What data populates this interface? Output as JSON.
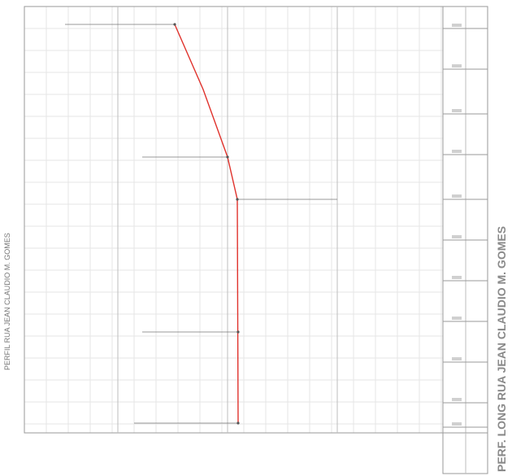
{
  "drawing": {
    "side_title": "PERFIL RUA JEAN CLAUDIO M. GOMES",
    "sheet_title": "PERF. LONG RUA JEAN CLAUDIO M. GOMES"
  }
}
